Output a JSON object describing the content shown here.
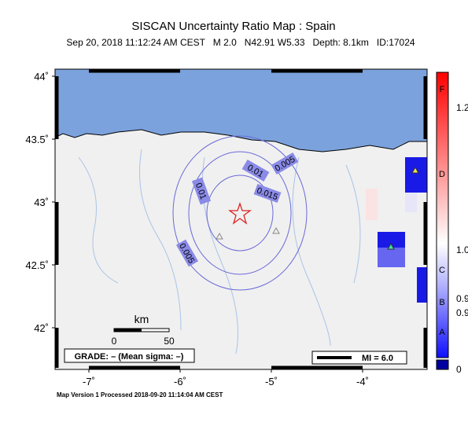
{
  "header": {
    "title": "SISCAN Uncertainty Ratio Map : Spain",
    "subtitle": "Sep 20, 2018 11:12:24 AM CEST   M 2.0   N42.91 W5.33   Depth: 8.1km   ID:17024"
  },
  "map": {
    "lat_ticks": [
      {
        "value": 44,
        "label": "44˚"
      },
      {
        "value": 43.5,
        "label": "43.5˚"
      },
      {
        "value": 43,
        "label": "43˚"
      },
      {
        "value": 42.5,
        "label": "42.5˚"
      },
      {
        "value": 42,
        "label": "42˚"
      }
    ],
    "lon_ticks": [
      {
        "value": -7,
        "label": "-7˚"
      },
      {
        "value": -6,
        "label": "-6˚"
      },
      {
        "value": -5,
        "label": "-5˚"
      },
      {
        "value": -4,
        "label": "-4˚"
      }
    ],
    "contour_labels": [
      "0.01",
      "0.005",
      "0.015",
      "0.01",
      "0.005"
    ],
    "scale_bar": {
      "unit": "km",
      "start": "0",
      "end": "50"
    },
    "grade": "GRADE: – (Mean sigma: –)",
    "mi_legend": "MI = 6.0"
  },
  "colorbar": {
    "letters": [
      "F",
      "D",
      "C",
      "B",
      "A"
    ],
    "labels": [
      "1.2",
      "1.0",
      "0.9",
      "0.9",
      "0"
    ]
  },
  "footer": "Map Version 1 Processed 2018-09-20 11:14:04 AM CEST"
}
